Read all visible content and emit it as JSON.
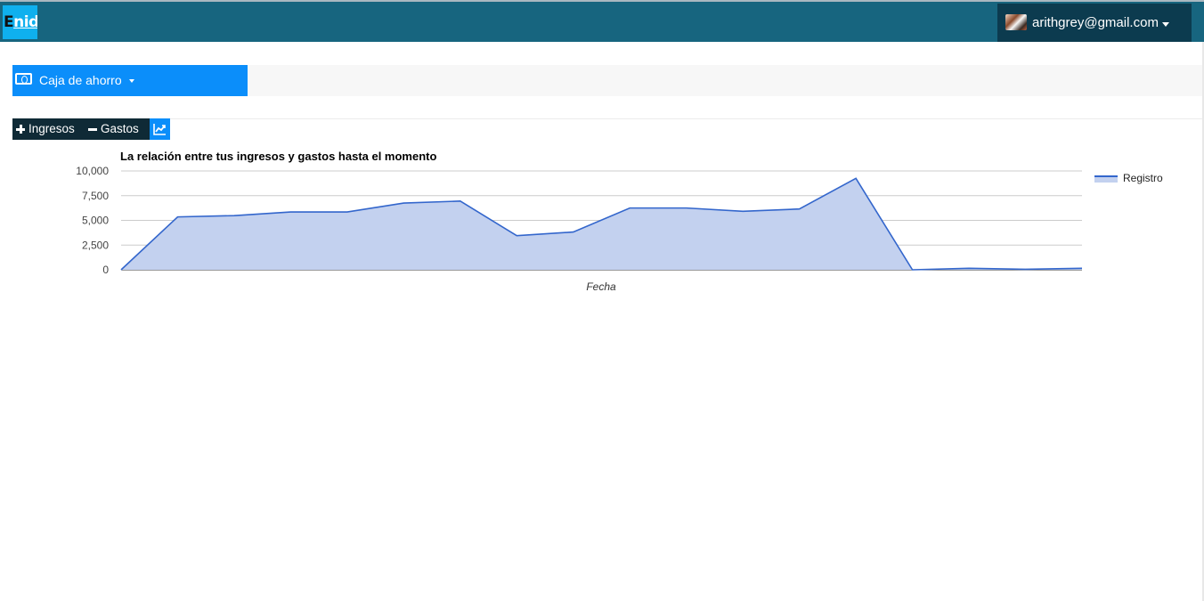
{
  "header": {
    "logo_first": "E",
    "logo_rest": "nid",
    "user_email": "arithgrey@gmail.com",
    "colors": {
      "bar": "#17657f",
      "user_menu": "#0c3b4f",
      "logo": "#0fb0ee"
    }
  },
  "account": {
    "selected": "Caja de ahorro",
    "icon": "money-icon",
    "color": "#0b8efa"
  },
  "actions": {
    "ingresos_label": "Ingresos",
    "gastos_label": "Gastos",
    "chart_icon": "line-chart-icon"
  },
  "chart_data": {
    "type": "area",
    "title": "La relación entre tus ingresos y gastos hasta el momento",
    "xlabel": "Fecha",
    "ylabel": "",
    "ylim": [
      0,
      10000
    ],
    "yticks": [
      "10,000",
      "7,500",
      "5,000",
      "2,500",
      "0"
    ],
    "grid": true,
    "legend_position": "right",
    "color": "#3366cc",
    "fill": "#c3d1ef",
    "series": [
      {
        "name": "Registro",
        "values": [
          0,
          5350,
          5480,
          5850,
          5850,
          6750,
          6950,
          3450,
          3820,
          6250,
          6250,
          5920,
          6150,
          9250,
          0,
          150,
          50,
          150
        ]
      }
    ]
  }
}
